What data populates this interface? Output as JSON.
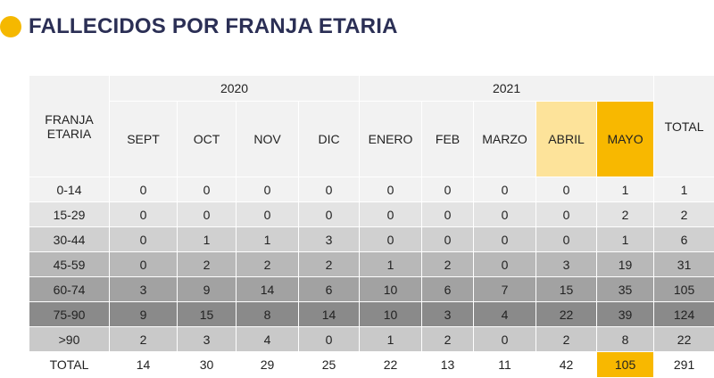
{
  "title": "FALLECIDOS POR FRANJA ETARIA",
  "colors": {
    "accent": "#f5b800",
    "title": "#2b2f55",
    "abril": "#fde39a",
    "mayo": "#f8b800"
  },
  "table": {
    "corner_header": "FRANJA\nETARIA",
    "years": [
      {
        "label": "2020",
        "span": 4
      },
      {
        "label": "2021",
        "span": 5
      }
    ],
    "months": [
      "SEPT",
      "OCT",
      "NOV",
      "DIC",
      "ENERO",
      "FEB",
      "MARZO",
      "ABRIL",
      "MAYO"
    ],
    "total_header": "TOTAL",
    "rows": [
      {
        "label": "0-14",
        "values": [
          "0",
          "0",
          "0",
          "0",
          "0",
          "0",
          "0",
          "0",
          "1"
        ],
        "total": "1"
      },
      {
        "label": "15-29",
        "values": [
          "0",
          "0",
          "0",
          "0",
          "0",
          "0",
          "0",
          "0",
          "2"
        ],
        "total": "2"
      },
      {
        "label": "30-44",
        "values": [
          "0",
          "1",
          "1",
          "3",
          "0",
          "0",
          "0",
          "0",
          "1"
        ],
        "total": "6"
      },
      {
        "label": "45-59",
        "values": [
          "0",
          "2",
          "2",
          "2",
          "1",
          "2",
          "0",
          "3",
          "19"
        ],
        "total": "31"
      },
      {
        "label": "60-74",
        "values": [
          "3",
          "9",
          "14",
          "6",
          "10",
          "6",
          "7",
          "15",
          "35"
        ],
        "total": "105"
      },
      {
        "label": "75-90",
        "values": [
          "9",
          "15",
          "8",
          "14",
          "10",
          "3",
          "4",
          "22",
          "39"
        ],
        "total": "124"
      },
      {
        "label": ">90",
        "values": [
          "2",
          "3",
          "4",
          "0",
          "1",
          "2",
          "0",
          "2",
          "8"
        ],
        "total": "22"
      }
    ],
    "total_row": {
      "label": "TOTAL",
      "values": [
        "14",
        "30",
        "29",
        "25",
        "22",
        "13",
        "11",
        "42",
        "105"
      ],
      "total": "291"
    }
  }
}
